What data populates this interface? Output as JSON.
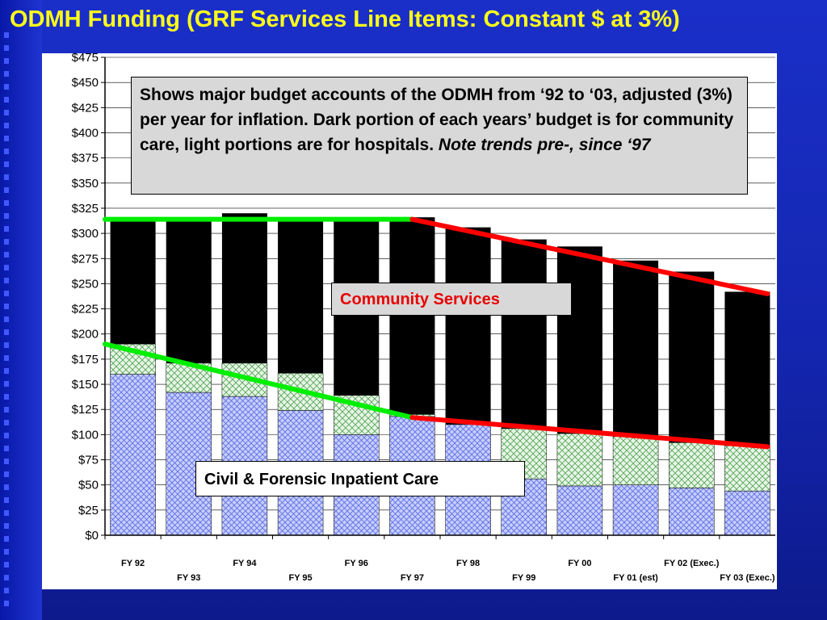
{
  "slide": {
    "title": "ODMH Funding (GRF Services Line Items: Constant $ at 3%)"
  },
  "annotations": {
    "info_text": "Shows major budget accounts of the ODMH from ‘92 to ‘03, adjusted (3%) per year for inflation. Dark portion of each years’ budget is for community care, light portions are for hospitals.",
    "info_note": "Note trends pre-, since ‘97",
    "community_label": "Community Services",
    "civil_label": "Civil & Forensic Inpatient Care"
  },
  "chart_data": {
    "type": "bar",
    "stacked": true,
    "categories": [
      "FY 92",
      "FY 93",
      "FY 94",
      "FY 95",
      "FY 96",
      "FY 97",
      "FY 98",
      "FY 99",
      "FY 00",
      "FY 01 (est)",
      "FY 02 (Exec.)",
      "FY 03 (Exec.)"
    ],
    "series": [
      {
        "values": [
          160,
          142,
          138,
          124,
          100,
          118,
          110,
          56,
          49,
          50,
          47,
          44
        ],
        "color": "#9aa8ff"
      },
      {
        "values": [
          30,
          29,
          33,
          37,
          39,
          2,
          0,
          50,
          52,
          48,
          45,
          45
        ],
        "color": "#b5e6b5"
      },
      {
        "values": [
          124,
          144,
          149,
          154,
          177,
          196,
          196,
          188,
          186,
          175,
          170,
          153
        ],
        "color": "#000000"
      }
    ],
    "ylim": [
      0,
      475
    ],
    "yticks": [
      "$0",
      "$25",
      "$50",
      "$75",
      "$100",
      "$125",
      "$150",
      "$175",
      "$200",
      "$225",
      "$250",
      "$275",
      "$300",
      "$325",
      "$350",
      "$375",
      "$400",
      "$425",
      "$450",
      "$475"
    ],
    "trend_lines": [
      {
        "color": "#00ee00",
        "x": [
          "FY 92",
          "FY 97"
        ],
        "y": [
          314,
          314
        ]
      },
      {
        "color": "#ff0000",
        "x": [
          "FY 97",
          "FY 03 (Exec.)"
        ],
        "y": [
          314,
          240
        ]
      },
      {
        "color": "#00ee00",
        "x": [
          "FY 92",
          "FY 97"
        ],
        "y": [
          190,
          117
        ]
      },
      {
        "color": "#ff0000",
        "x": [
          "FY 97",
          "FY 03 (Exec.)"
        ],
        "y": [
          117,
          88
        ]
      }
    ],
    "colors": {
      "community": "#000000",
      "civil": "#9aa8ff",
      "forensic": "#b5e6b5",
      "trend_up": "#00ee00",
      "trend_down": "#ff0000"
    }
  }
}
